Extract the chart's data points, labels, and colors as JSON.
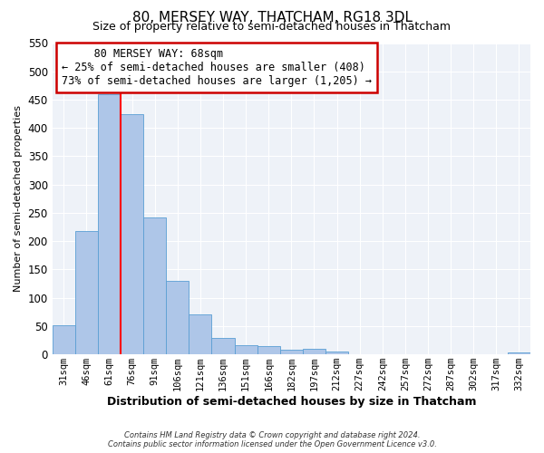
{
  "title": "80, MERSEY WAY, THATCHAM, RG18 3DL",
  "subtitle": "Size of property relative to semi-detached houses in Thatcham",
  "xlabel": "Distribution of semi-detached houses by size in Thatcham",
  "ylabel": "Number of semi-detached properties",
  "bin_labels": [
    "31sqm",
    "46sqm",
    "61sqm",
    "76sqm",
    "91sqm",
    "106sqm",
    "121sqm",
    "136sqm",
    "151sqm",
    "166sqm",
    "182sqm",
    "197sqm",
    "212sqm",
    "227sqm",
    "242sqm",
    "257sqm",
    "272sqm",
    "287sqm",
    "302sqm",
    "317sqm",
    "332sqm"
  ],
  "bar_values": [
    52,
    218,
    460,
    425,
    242,
    130,
    70,
    29,
    17,
    15,
    9,
    10,
    5,
    0,
    0,
    0,
    0,
    0,
    0,
    0,
    3
  ],
  "bar_color": "#aec6e8",
  "bar_edge_color": "#5a9fd4",
  "red_line_bin": 2,
  "property_label": "80 MERSEY WAY: 68sqm",
  "smaller_pct": "25%",
  "smaller_count": "408",
  "larger_pct": "73%",
  "larger_count": "1,205",
  "annotation_box_color": "#ffffff",
  "annotation_box_edge": "#cc0000",
  "ylim": [
    0,
    550
  ],
  "yticks": [
    0,
    50,
    100,
    150,
    200,
    250,
    300,
    350,
    400,
    450,
    500,
    550
  ],
  "footer_line1": "Contains HM Land Registry data © Crown copyright and database right 2024.",
  "footer_line2": "Contains public sector information licensed under the Open Government Licence v3.0.",
  "background_color": "#eef2f8",
  "grid_color": "#ffffff",
  "fig_bg": "#ffffff"
}
